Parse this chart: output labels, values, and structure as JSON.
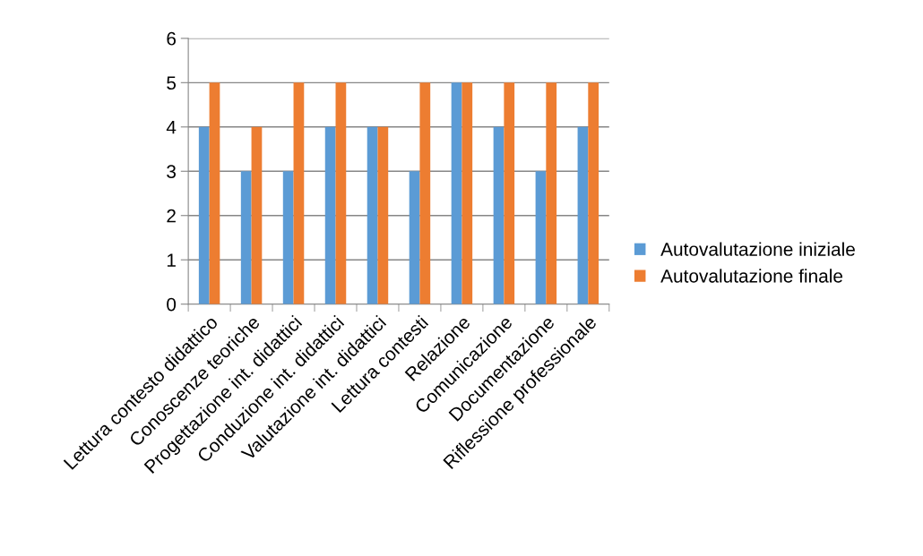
{
  "chart_data": {
    "type": "bar",
    "categories": [
      "Lettura contesto didattico",
      "Conoscenze teoriche",
      "Progettazione int. didattici",
      "Conduzione int. didattici",
      "Valutazione int. didattici",
      "Lettura contesti",
      "Relazione",
      "Comunicazione",
      "Documentazione",
      "Riflessione professionale"
    ],
    "series": [
      {
        "name": "Autovalutazione iniziale",
        "color": "#5b9bd5",
        "values": [
          4,
          3,
          3,
          4,
          4,
          3,
          5,
          4,
          3,
          4
        ]
      },
      {
        "name": "Autovalutazione finale",
        "color": "#ed7d31",
        "values": [
          5,
          4,
          5,
          5,
          4,
          5,
          5,
          5,
          5,
          5
        ]
      }
    ],
    "ylim": [
      0,
      6
    ],
    "yticks": [
      0,
      1,
      2,
      3,
      4,
      5,
      6
    ],
    "grid": "y",
    "legend": "right"
  }
}
